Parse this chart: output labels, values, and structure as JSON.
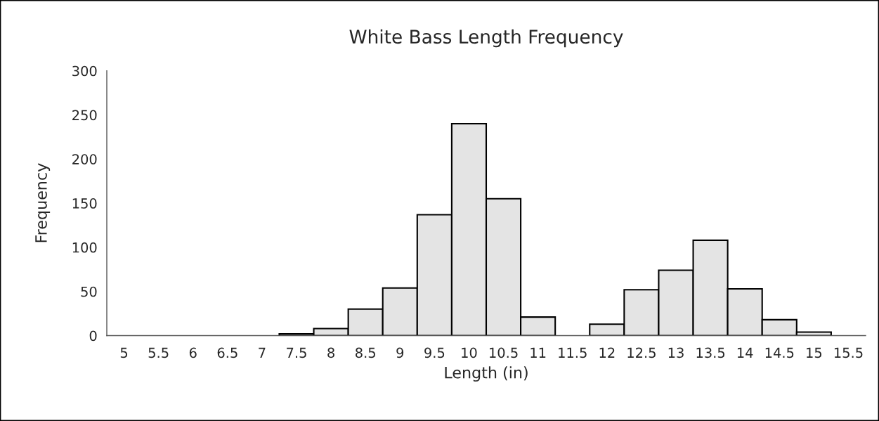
{
  "chart_data": {
    "type": "bar",
    "title": "White Bass Length Frequency",
    "xlabel": "Length (in)",
    "ylabel": "Frequency",
    "categories": [
      "5",
      "5.5",
      "6",
      "6.5",
      "7",
      "7.5",
      "8",
      "8.5",
      "9",
      "9.5",
      "10",
      "10.5",
      "11",
      "11.5",
      "12",
      "12.5",
      "13",
      "13.5",
      "14",
      "14.5",
      "15",
      "15.5"
    ],
    "values": [
      0,
      0,
      0,
      0,
      0,
      2,
      8,
      30,
      54,
      137,
      240,
      155,
      21,
      0,
      13,
      52,
      74,
      108,
      53,
      18,
      4,
      0
    ],
    "color": "#e4e4e4",
    "ylim": [
      0,
      300
    ],
    "yticks": [
      0,
      50,
      100,
      150,
      200,
      250,
      300
    ],
    "grid": false,
    "legend": false
  }
}
